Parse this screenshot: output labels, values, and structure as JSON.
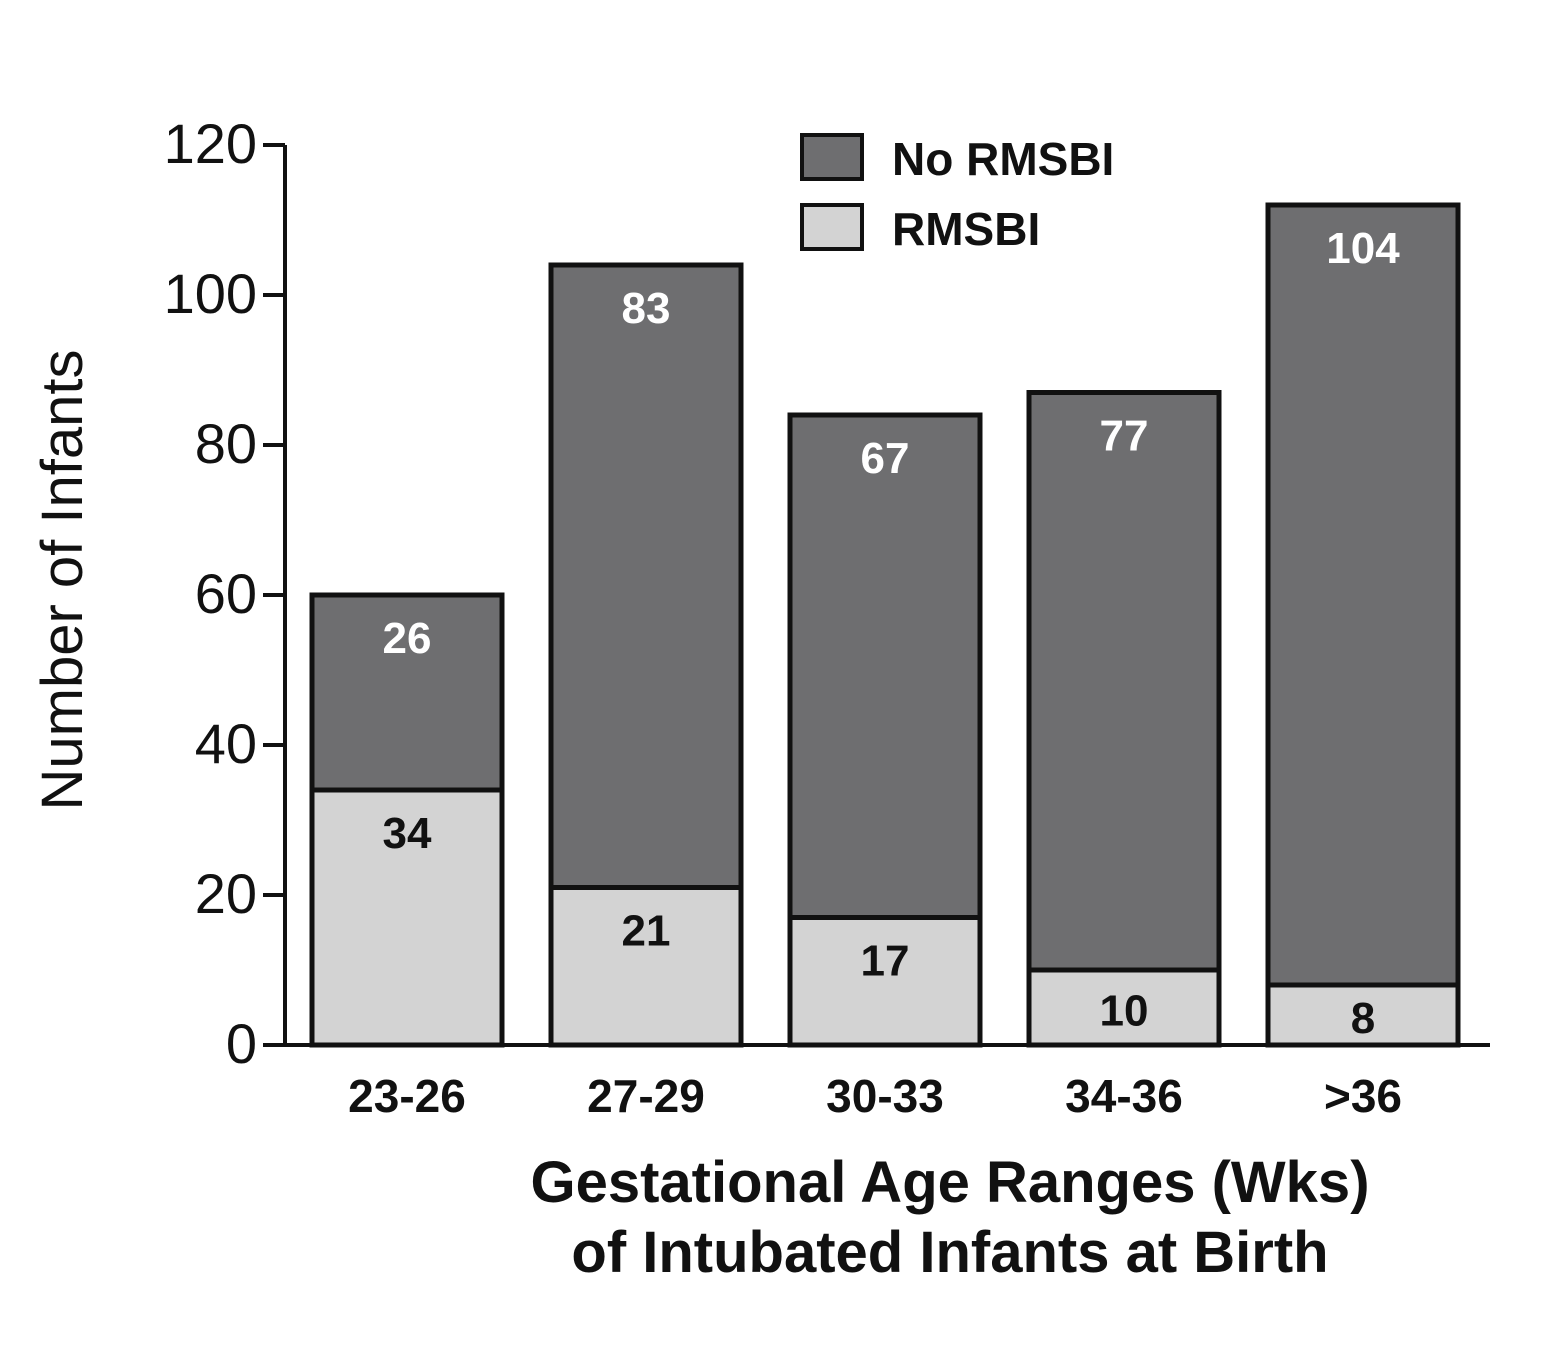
{
  "chart_data": {
    "type": "bar",
    "stacked": true,
    "title": "",
    "xlabel_lines": [
      "Gestational Age Ranges (Wks)",
      "of Intubated Infants at Birth"
    ],
    "ylabel": "Number of Infants",
    "ylim": [
      0,
      120
    ],
    "yticks": [
      0,
      20,
      40,
      60,
      80,
      100,
      120
    ],
    "grid": false,
    "legend_position": "top-right",
    "categories": [
      "23-26",
      "27-29",
      "30-33",
      "34-36",
      ">36"
    ],
    "series": [
      {
        "name": "RMSBI",
        "color": "#d3d3d3",
        "label_color": "#111111",
        "values": [
          34,
          21,
          17,
          10,
          8
        ]
      },
      {
        "name": "No RMSBI",
        "color": "#6e6e70",
        "label_color": "#ffffff",
        "values": [
          26,
          83,
          67,
          77,
          104
        ]
      }
    ],
    "legend_order": [
      "No RMSBI",
      "RMSBI"
    ]
  }
}
